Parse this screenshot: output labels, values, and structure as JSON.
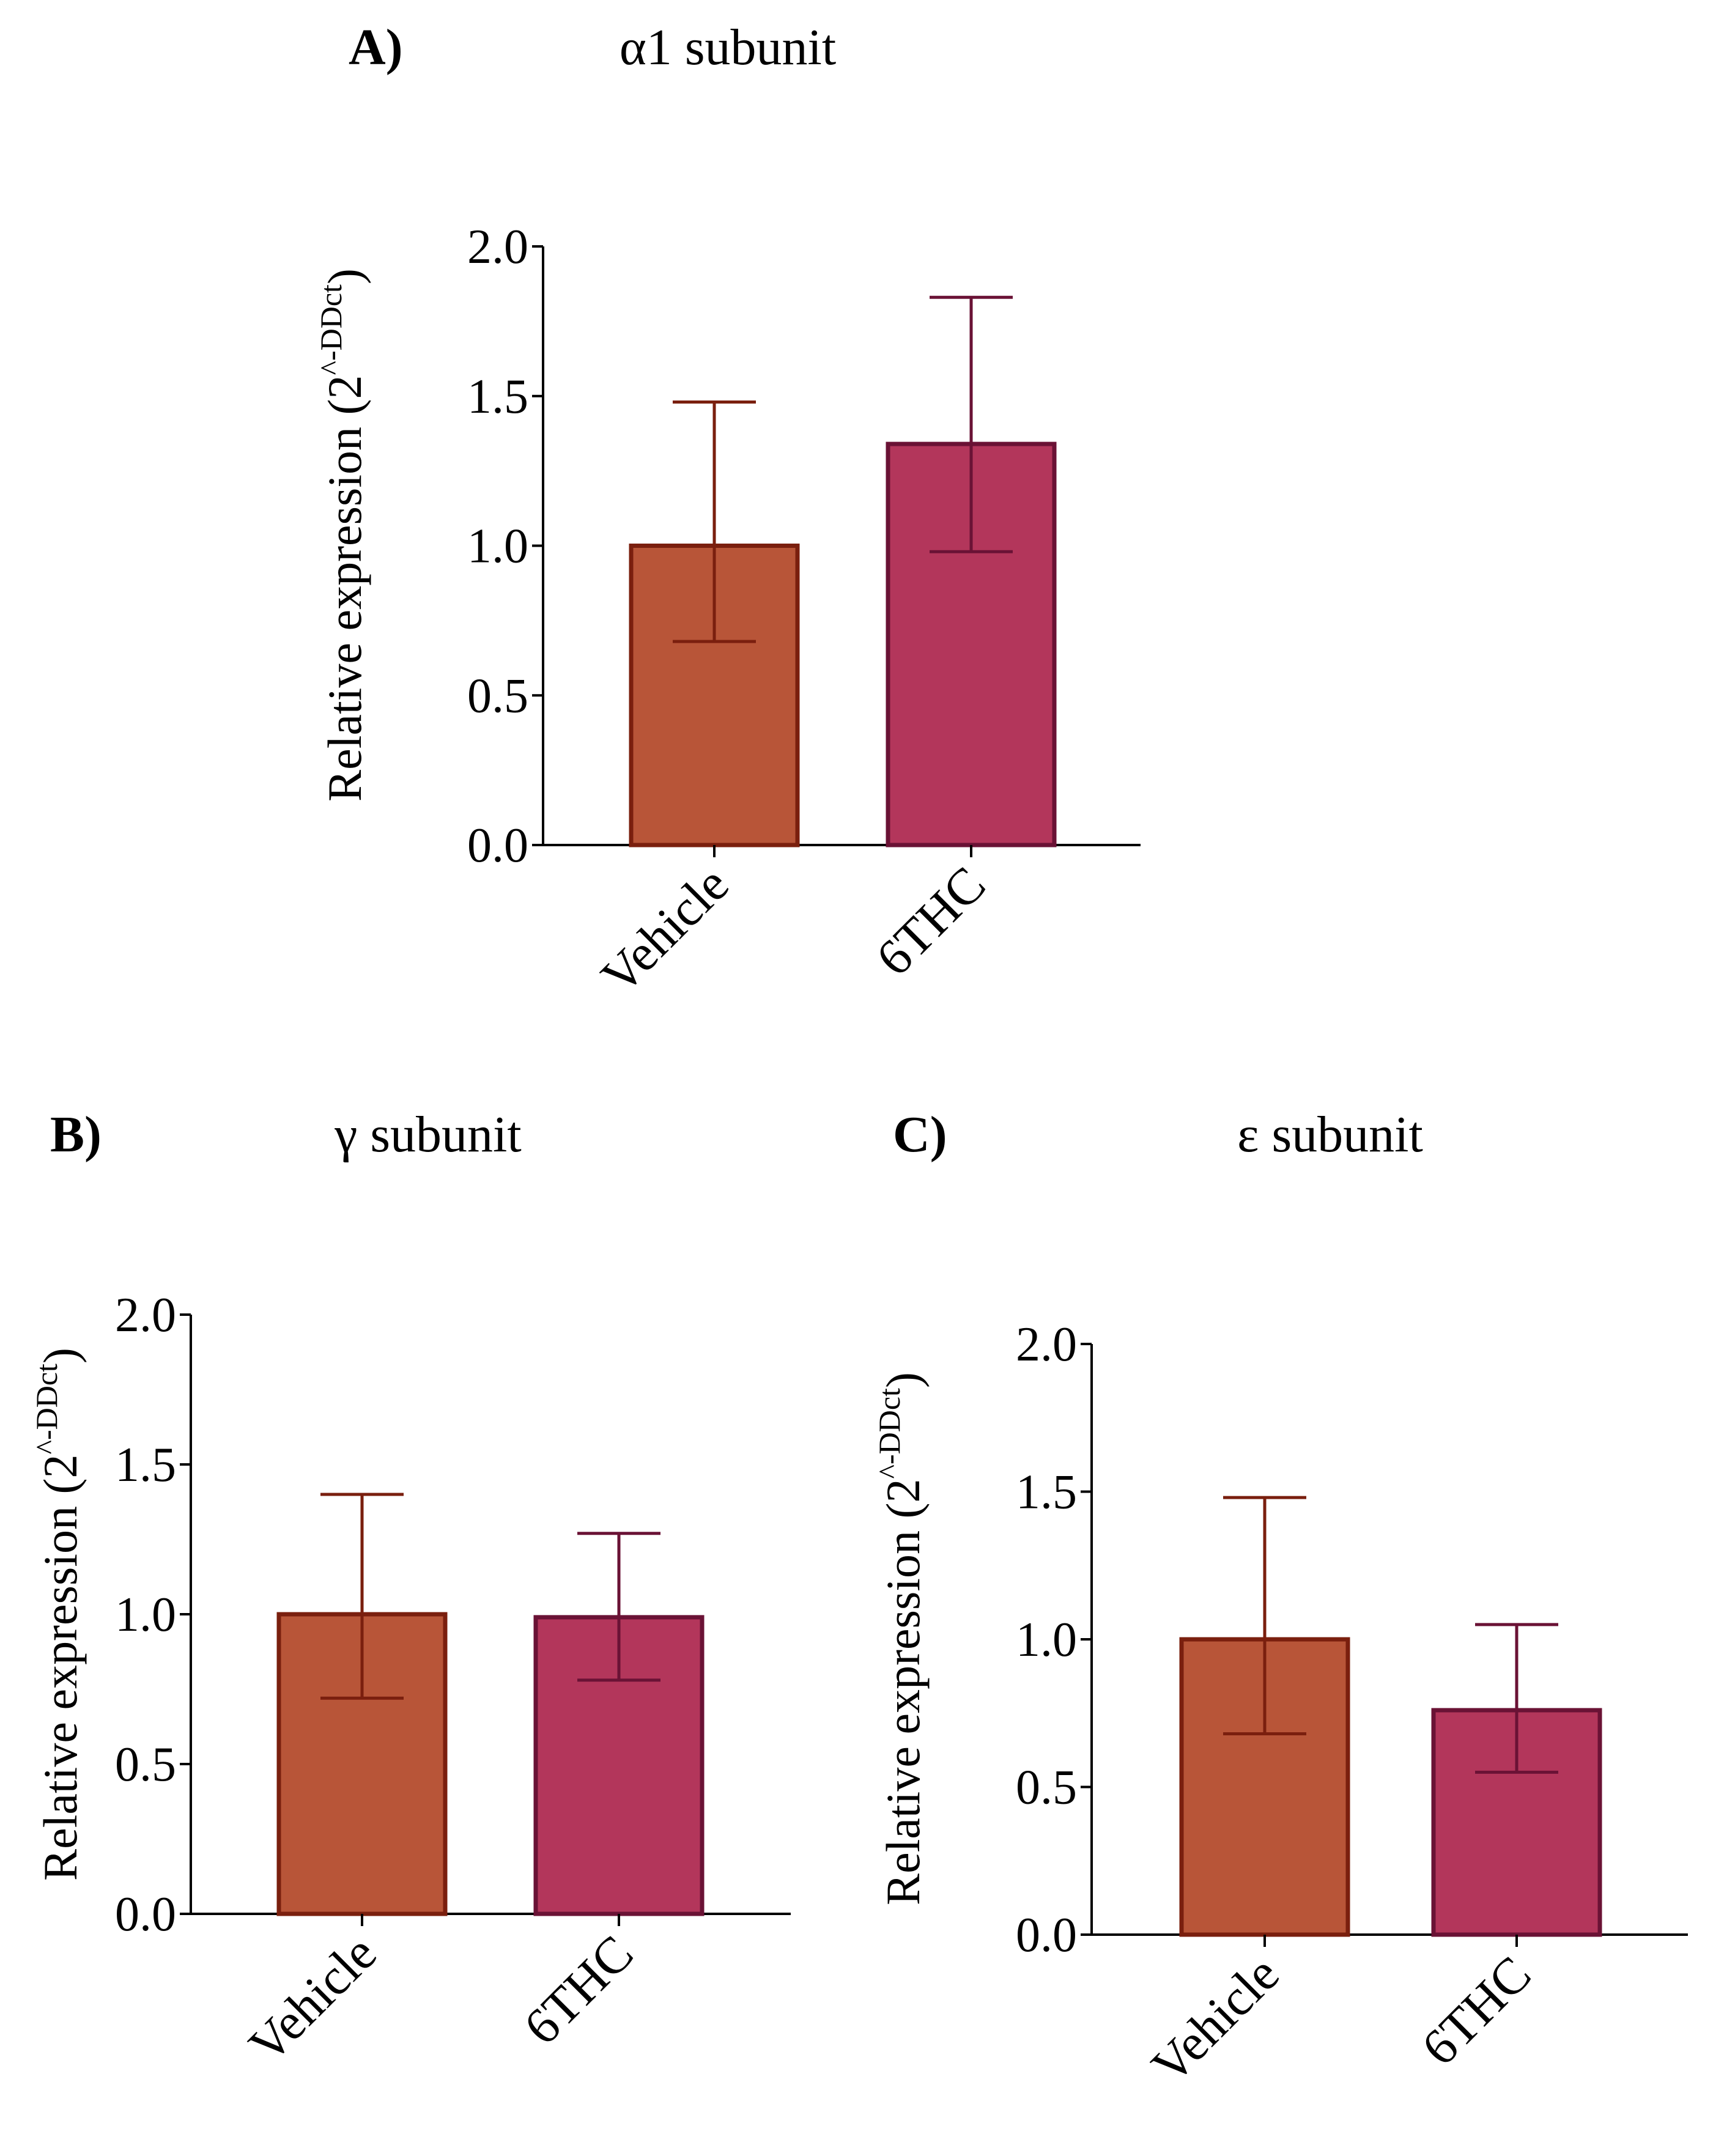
{
  "charts": [
    {
      "id": "A",
      "letter": "A)",
      "chart_data": {
        "type": "bar",
        "title": "α1 subunit",
        "categories": [
          "Vehicle",
          "6THC"
        ],
        "values": [
          1.0,
          1.34
        ],
        "error_upper": [
          1.48,
          1.83
        ],
        "error_lower": [
          0.68,
          0.98
        ],
        "ylabel": "Relative expression (2^-DDct)",
        "ylabel_base": "Relative expression (2",
        "ylabel_sup": "^-DDct",
        "ylabel_close": ")",
        "ylim": [
          0,
          2.0
        ],
        "yticks": [
          "0.0",
          "0.5",
          "1.0",
          "1.5",
          "2.0"
        ],
        "colors": [
          "#b85538",
          "#b3365b"
        ],
        "edge_colors": [
          "#7a1f0e",
          "#6a1235"
        ]
      }
    },
    {
      "id": "B",
      "letter": "B)",
      "chart_data": {
        "type": "bar",
        "title": "γ subunit",
        "categories": [
          "Vehicle",
          "6THC"
        ],
        "values": [
          1.0,
          0.99
        ],
        "error_upper": [
          1.4,
          1.27
        ],
        "error_lower": [
          0.72,
          0.78
        ],
        "ylabel": "Relative expression (2^-DDct)",
        "ylabel_base": "Relative expression (2",
        "ylabel_sup": "^-DDct",
        "ylabel_close": ")",
        "ylim": [
          0,
          2.0
        ],
        "yticks": [
          "0.0",
          "0.5",
          "1.0",
          "1.5",
          "2.0"
        ],
        "colors": [
          "#b85538",
          "#b3365b"
        ],
        "edge_colors": [
          "#7a1f0e",
          "#6a1235"
        ]
      }
    },
    {
      "id": "C",
      "letter": "C)",
      "chart_data": {
        "type": "bar",
        "title": "ε subunit",
        "categories": [
          "Vehicle",
          "6THC"
        ],
        "values": [
          1.0,
          0.76
        ],
        "error_upper": [
          1.48,
          1.05
        ],
        "error_lower": [
          0.68,
          0.55
        ],
        "ylabel": "Relative expression (2^-DDct)",
        "ylabel_base": "Relative expression (2",
        "ylabel_sup": "^-DDct",
        "ylabel_close": ")",
        "ylim": [
          0,
          2.0
        ],
        "yticks": [
          "0.0",
          "0.5",
          "1.0",
          "1.5",
          "2.0"
        ],
        "colors": [
          "#b85538",
          "#b3365b"
        ],
        "edge_colors": [
          "#7a1f0e",
          "#6a1235"
        ]
      }
    }
  ]
}
